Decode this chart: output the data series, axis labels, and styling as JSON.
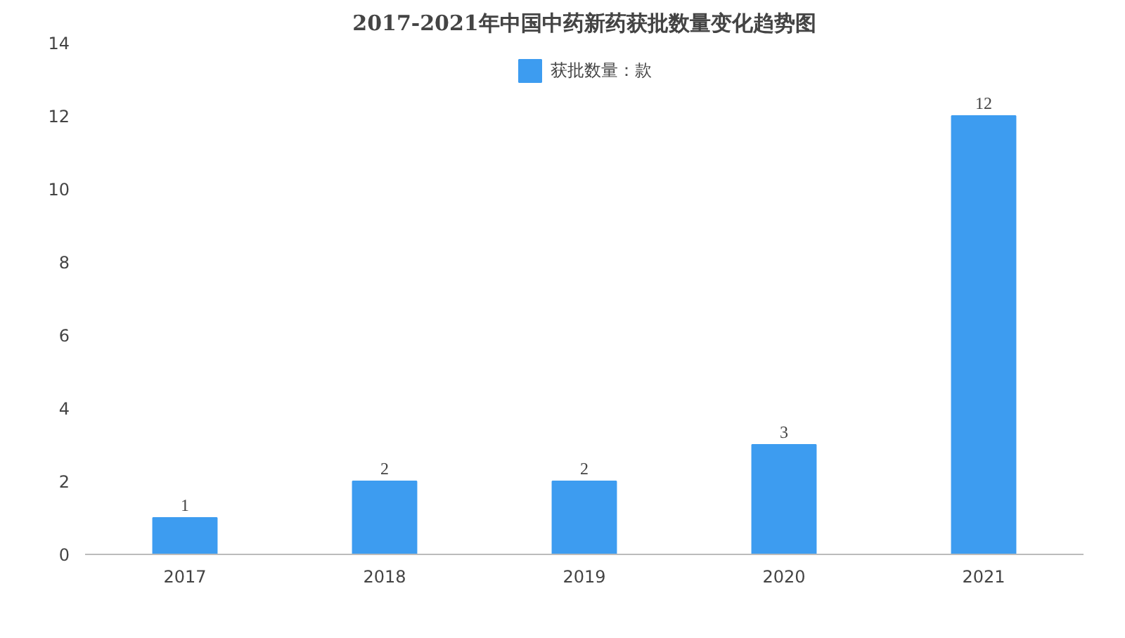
{
  "chart_data": {
    "type": "bar",
    "title": "2017-2021年中国中药新药获批数量变化趋势图",
    "categories": [
      "2017",
      "2018",
      "2019",
      "2020",
      "2021"
    ],
    "series": [
      {
        "name": "获批数量：款",
        "color": "#3d9cf0",
        "values": [
          1,
          2,
          2,
          3,
          12
        ]
      }
    ],
    "ylim": [
      0,
      14
    ],
    "yticks": [
      0,
      2,
      4,
      6,
      8,
      10,
      12,
      14
    ],
    "grid": false,
    "legend": "top",
    "data_labels": true
  }
}
